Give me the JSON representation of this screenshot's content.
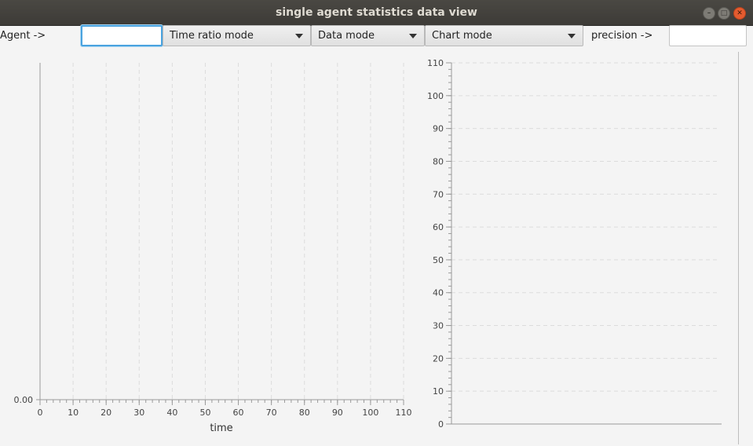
{
  "window": {
    "title": "single agent statistics data view"
  },
  "toolbar": {
    "agent_label": "Agent ->",
    "agent_value": "",
    "time_ratio_mode": "Time ratio mode",
    "data_mode": "Data mode",
    "chart_mode": "Chart mode",
    "precision_label": "precision ->",
    "precision_value": ""
  },
  "chart_data": [
    {
      "type": "line",
      "title": "",
      "xlabel": "time",
      "ylabel": "",
      "xlim": [
        0,
        110
      ],
      "x_ticks": [
        "0",
        "10",
        "20",
        "30",
        "40",
        "50",
        "60",
        "70",
        "80",
        "90",
        "100",
        "110"
      ],
      "y_ticks": [
        "0.00"
      ],
      "series": [],
      "grid": "vertical dashed"
    },
    {
      "type": "bar",
      "title": "",
      "xlabel": "",
      "ylabel": "",
      "ylim": [
        0,
        110
      ],
      "y_ticks": [
        "0",
        "10",
        "20",
        "30",
        "40",
        "50",
        "60",
        "70",
        "80",
        "90",
        "100",
        "110"
      ],
      "categories": [],
      "series": [],
      "grid": "horizontal dashed"
    }
  ]
}
